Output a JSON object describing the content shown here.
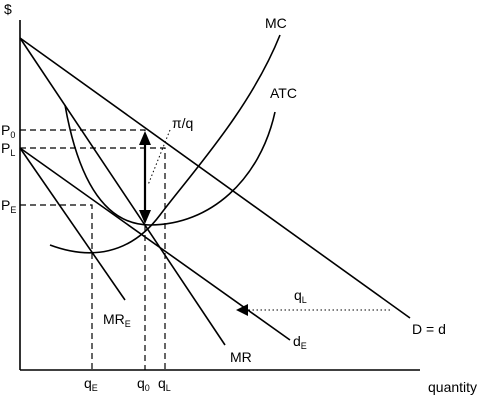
{
  "axes": {
    "y_label": "$",
    "x_label": "quantity"
  },
  "prices": [
    {
      "text": "P",
      "sub": "0"
    },
    {
      "text": "P",
      "sub": "L"
    },
    {
      "text": "P",
      "sub": "E"
    }
  ],
  "quantities": [
    {
      "text": "q",
      "sub": "E"
    },
    {
      "text": "q",
      "sub": "0"
    },
    {
      "text": "q",
      "sub": "L"
    }
  ],
  "curves": {
    "mc": "MC",
    "atc": "ATC",
    "demand": "D = d",
    "mr": "MR",
    "mr_e": {
      "text": "MR",
      "sub": "E"
    },
    "d_e": {
      "text": "d",
      "sub": "E"
    }
  },
  "annotations": {
    "profit": "π/q",
    "shift": {
      "text": "q",
      "sub": "L"
    }
  }
}
